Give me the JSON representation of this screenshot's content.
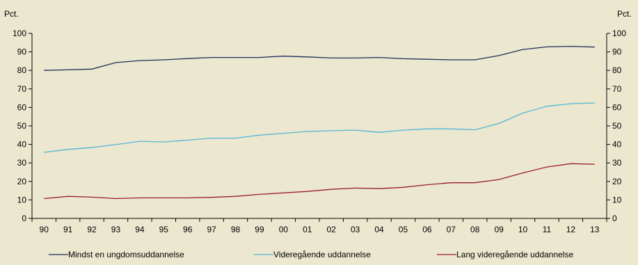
{
  "chart_data": {
    "type": "line",
    "ylabel_left": "Pct.",
    "ylabel_right": "Pct.",
    "ylim": [
      0,
      100
    ],
    "yticks": [
      0,
      10,
      20,
      30,
      40,
      50,
      60,
      70,
      80,
      90,
      100
    ],
    "categories": [
      "90",
      "91",
      "92",
      "93",
      "94",
      "95",
      "96",
      "97",
      "98",
      "99",
      "00",
      "01",
      "02",
      "03",
      "04",
      "05",
      "06",
      "07",
      "08",
      "09",
      "10",
      "11",
      "12",
      "13"
    ],
    "grid": false,
    "legend_position": "bottom",
    "series": [
      {
        "name": "Mindst en ungdomsuddannelse",
        "color": "#1f2d5c",
        "values": [
          80,
          80.3,
          80.7,
          84.2,
          85.3,
          85.7,
          86.4,
          87,
          87,
          87,
          87.7,
          87.3,
          86.7,
          86.7,
          87,
          86.3,
          86,
          85.7,
          85.7,
          88,
          91.3,
          92.7,
          93,
          92.6
        ]
      },
      {
        "name": "Videregående uddannelse",
        "color": "#4fb6d8",
        "values": [
          35.7,
          37.3,
          38.3,
          39.9,
          41.7,
          41.3,
          42.3,
          43.4,
          43.4,
          45,
          46,
          47,
          47.4,
          47.7,
          46.5,
          47.7,
          48.4,
          48.4,
          47.9,
          51.3,
          56.9,
          60.6,
          62,
          62.4
        ]
      },
      {
        "name": "Lang videregående uddannelse",
        "color": "#9b1c2e",
        "values": [
          10.7,
          11.9,
          11.5,
          10.7,
          11.1,
          11.1,
          11.1,
          11.4,
          11.9,
          13,
          13.8,
          14.6,
          15.7,
          16.4,
          16.1,
          16.8,
          18.2,
          19.3,
          19.3,
          21,
          24.6,
          27.8,
          29.6,
          29.3
        ]
      }
    ]
  }
}
